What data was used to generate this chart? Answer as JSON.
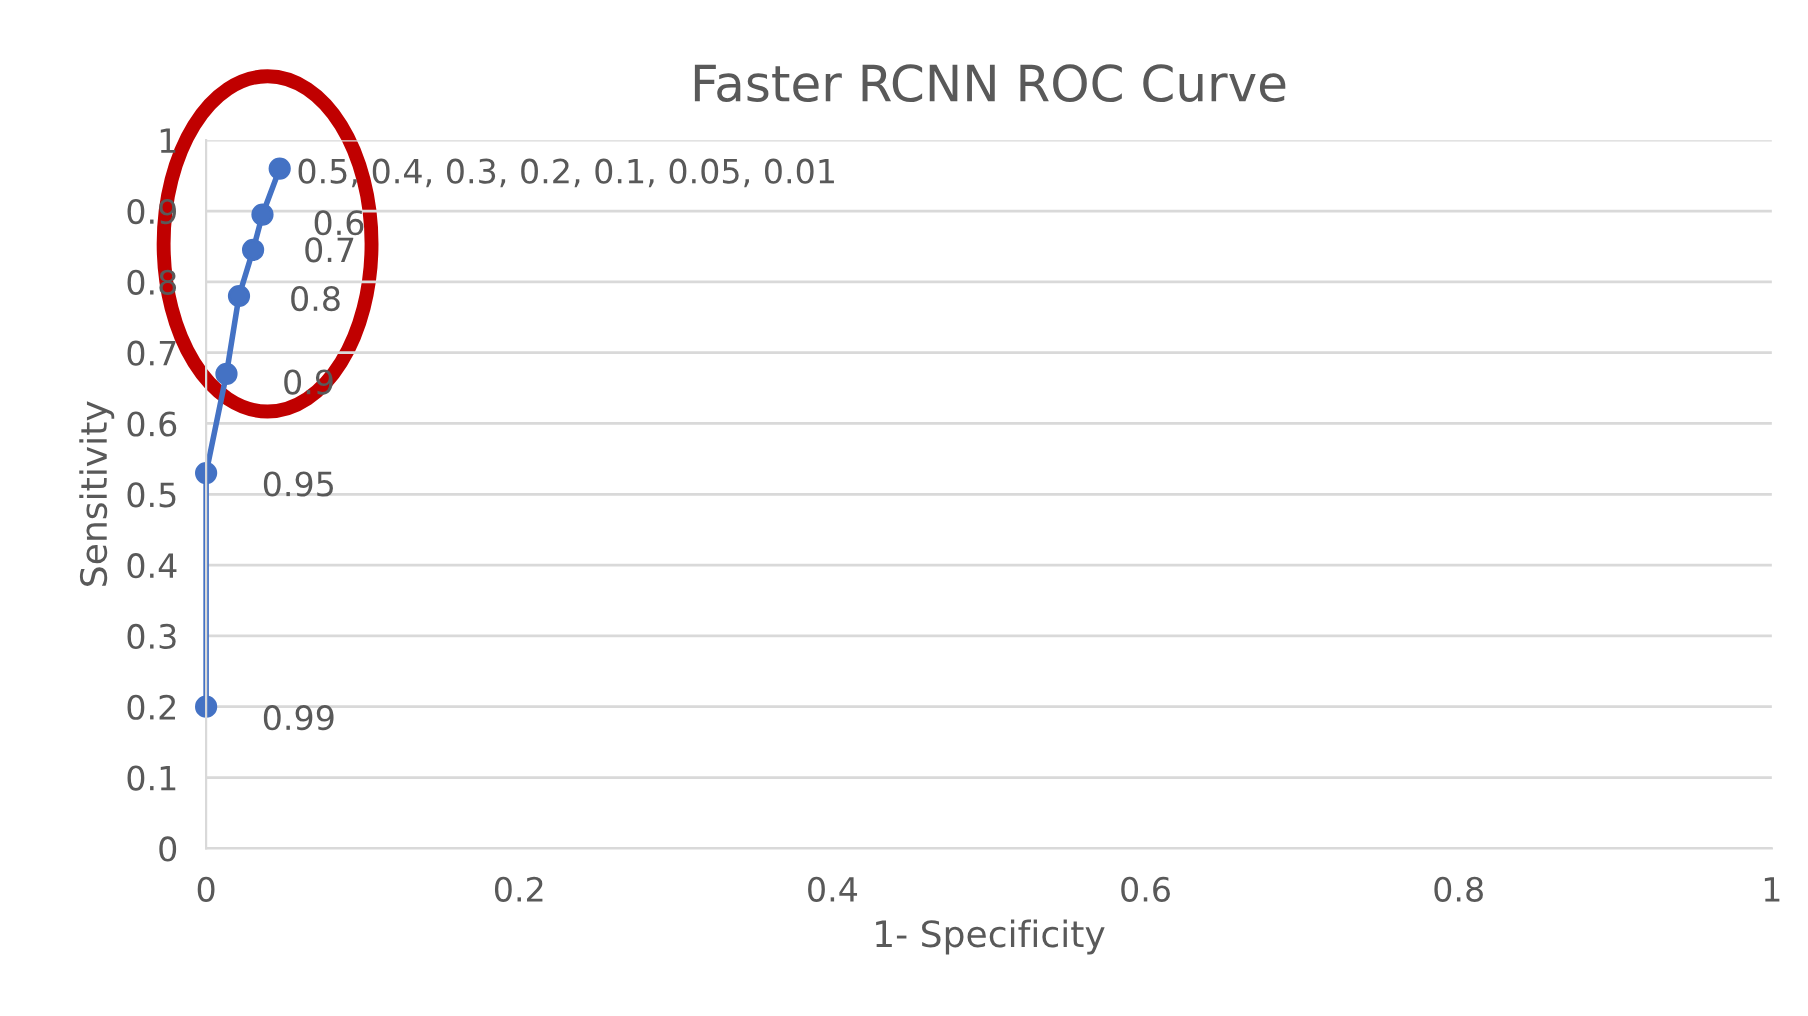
{
  "chart_data": {
    "type": "line",
    "title": "Faster RCNN ROC Curve",
    "xlabel": "1- Specificity",
    "ylabel": "Sensitivity",
    "x": [
      0,
      0,
      0.013,
      0.021,
      0.03,
      0.036,
      0.047
    ],
    "series": [
      {
        "color": "#4472c4",
        "values": [
          0.2,
          0.53,
          0.67,
          0.78,
          0.845,
          0.895,
          0.96
        ]
      }
    ],
    "marker": "circle",
    "line_style": "solid",
    "annotations": [
      {
        "text": "0.99",
        "x": 0,
        "y": 0.2
      },
      {
        "text": "0.95",
        "x": 0,
        "y": 0.53
      },
      {
        "text": "0.9",
        "x": 0.013,
        "y": 0.67
      },
      {
        "text": "0.8",
        "x": 0.021,
        "y": 0.78
      },
      {
        "text": "0.7",
        "x": 0.03,
        "y": 0.845
      },
      {
        "text": "0.6",
        "x": 0.036,
        "y": 0.895
      },
      {
        "text": "0.5, 0.4, 0.3, 0.2, 0.1, 0.05, 0.01",
        "x": 0.047,
        "y": 0.96
      }
    ],
    "xlim": [
      0,
      1
    ],
    "xticks": [
      0,
      0.2,
      0.4,
      0.6,
      0.8,
      1
    ],
    "ylim": [
      0,
      1
    ],
    "yticks": [
      0,
      0.1,
      0.2,
      0.3,
      0.4,
      0.5,
      0.6,
      0.7,
      0.8,
      0.9,
      1
    ],
    "grid": "y",
    "legend": false
  }
}
